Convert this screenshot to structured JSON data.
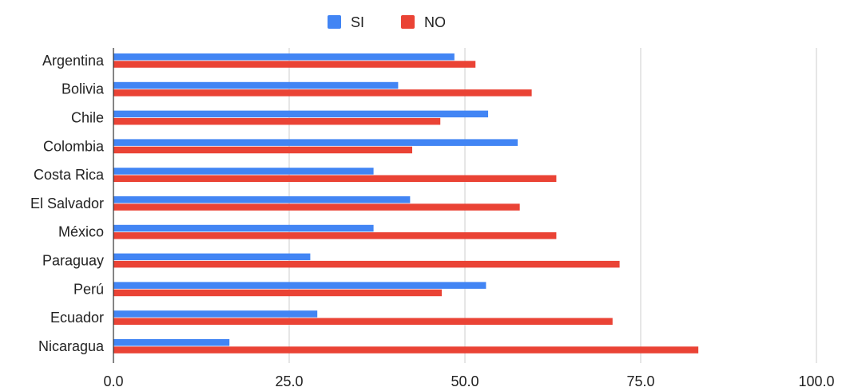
{
  "chart_data": {
    "type": "bar",
    "orientation": "horizontal",
    "categories": [
      "Argentina",
      "Bolivia",
      "Chile",
      "Colombia",
      "Costa Rica",
      "El Salvador",
      "México",
      "Paraguay",
      "Perú",
      "Ecuador",
      "Nicaragua"
    ],
    "series": [
      {
        "name": "SI",
        "color": "#4285f4",
        "values": [
          48.5,
          40.5,
          53.3,
          57.5,
          37.0,
          42.2,
          37.0,
          28.0,
          53.0,
          29.0,
          16.5
        ]
      },
      {
        "name": "NO",
        "color": "#ea4335",
        "values": [
          51.5,
          59.5,
          46.5,
          42.5,
          63.0,
          57.8,
          63.0,
          72.0,
          46.7,
          71.0,
          83.2
        ]
      }
    ],
    "xlim": [
      0,
      100
    ],
    "xticks": [
      0,
      25,
      50,
      75,
      100
    ],
    "xtick_labels": [
      "0.0",
      "25.0",
      "50.0",
      "75.0",
      "100.0"
    ],
    "title": "",
    "xlabel": "",
    "ylabel": "",
    "grid": true,
    "legend": "top-center"
  }
}
